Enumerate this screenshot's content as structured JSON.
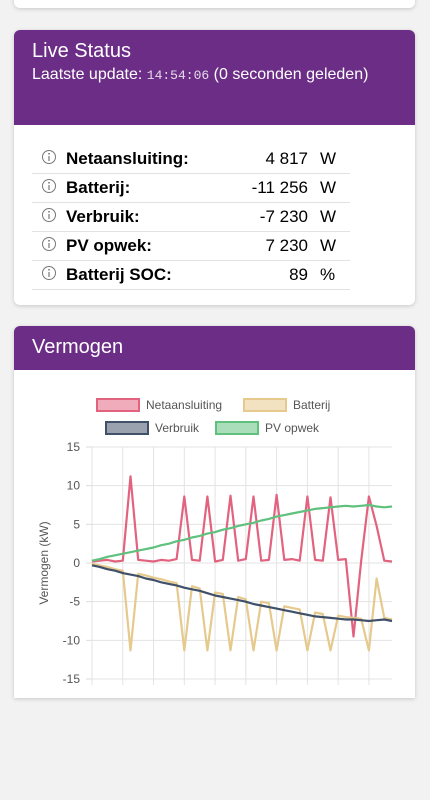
{
  "live_status": {
    "title": "Live Status",
    "update_label": "Laatste update:",
    "timestamp": "14:54:06",
    "update_suffix": "(0 seconden geleden)",
    "rows": [
      {
        "label": "Netaansluiting:",
        "value": "4 817",
        "unit": "W"
      },
      {
        "label": "Batterij:",
        "value": "-11 256",
        "unit": "W"
      },
      {
        "label": "Verbruik:",
        "value": "-7 230",
        "unit": "W"
      },
      {
        "label": "PV opwek:",
        "value": "7 230",
        "unit": "W"
      },
      {
        "label": "Batterij SOC:",
        "value": "89",
        "unit": "%"
      }
    ]
  },
  "chart_card": {
    "title": "Vermogen"
  },
  "chart_data": {
    "type": "line",
    "y_label": "Vermogen (kW)",
    "categories": [
      null,
      null,
      null,
      null,
      null,
      null,
      null,
      null,
      null,
      null,
      null,
      null,
      null,
      null,
      null,
      null,
      null,
      null,
      null,
      null,
      null,
      null,
      null,
      null,
      null,
      null,
      null,
      null,
      null,
      null,
      null,
      null,
      null,
      null,
      null,
      null,
      null,
      null,
      null,
      null
    ],
    "ylim": [
      -15,
      15
    ],
    "yticks": [
      15,
      10,
      5,
      0,
      -5,
      -10,
      -15
    ],
    "grid": true,
    "series": [
      {
        "name": "Netaansluiting",
        "color": "#e2637f",
        "values": [
          0.2,
          0.3,
          0.4,
          0.2,
          0.3,
          11.2,
          0.4,
          0.3,
          0.2,
          0.4,
          0.3,
          0.5,
          8.6,
          0.4,
          0.3,
          8.6,
          0.2,
          0.4,
          8.7,
          0.3,
          0.5,
          8.6,
          0.3,
          0.4,
          8.8,
          0.4,
          0.5,
          0.3,
          8.6,
          0.4,
          0.3,
          8.5,
          0.4,
          0.5,
          -9.5,
          0.3,
          8.6,
          4.8,
          0.3,
          0.2
        ]
      },
      {
        "name": "Batterij",
        "color": "#e6c98c",
        "values": [
          -0.1,
          -0.3,
          -0.5,
          -0.8,
          -1.0,
          -11.3,
          -1.4,
          -1.6,
          -1.9,
          -2.1,
          -2.4,
          -2.6,
          -11.3,
          -3.0,
          -3.3,
          -11.3,
          -3.8,
          -4.0,
          -11.3,
          -4.4,
          -4.7,
          -11.3,
          -5.0,
          -5.2,
          -11.3,
          -5.6,
          -5.8,
          -6.0,
          -11.3,
          -6.4,
          -6.6,
          -11.3,
          -6.8,
          -7.0,
          -7.1,
          -7.2,
          -11.3,
          -2.0,
          -7.1,
          -7.3
        ]
      },
      {
        "name": "Verbruik",
        "color": "#3f5068",
        "values": [
          -0.3,
          -0.5,
          -0.8,
          -1.0,
          -1.3,
          -1.5,
          -1.7,
          -2.0,
          -2.2,
          -2.5,
          -2.7,
          -2.9,
          -3.2,
          -3.4,
          -3.6,
          -3.9,
          -4.2,
          -4.4,
          -4.6,
          -4.8,
          -5.0,
          -5.3,
          -5.5,
          -5.7,
          -5.9,
          -6.1,
          -6.3,
          -6.5,
          -6.7,
          -6.9,
          -7.0,
          -7.1,
          -7.2,
          -7.3,
          -7.3,
          -7.4,
          -7.5,
          -7.4,
          -7.3,
          -7.5
        ]
      },
      {
        "name": "PV opwek",
        "color": "#5fc17d",
        "values": [
          0.3,
          0.5,
          0.8,
          1.0,
          1.2,
          1.4,
          1.6,
          1.8,
          2.0,
          2.3,
          2.5,
          2.8,
          3.0,
          3.3,
          3.5,
          3.8,
          4.0,
          4.3,
          4.5,
          4.8,
          5.0,
          5.2,
          5.5,
          5.7,
          6.0,
          6.2,
          6.4,
          6.6,
          6.8,
          7.0,
          7.1,
          7.2,
          7.3,
          7.4,
          7.3,
          7.4,
          7.5,
          7.3,
          7.2,
          7.3
        ]
      }
    ]
  }
}
